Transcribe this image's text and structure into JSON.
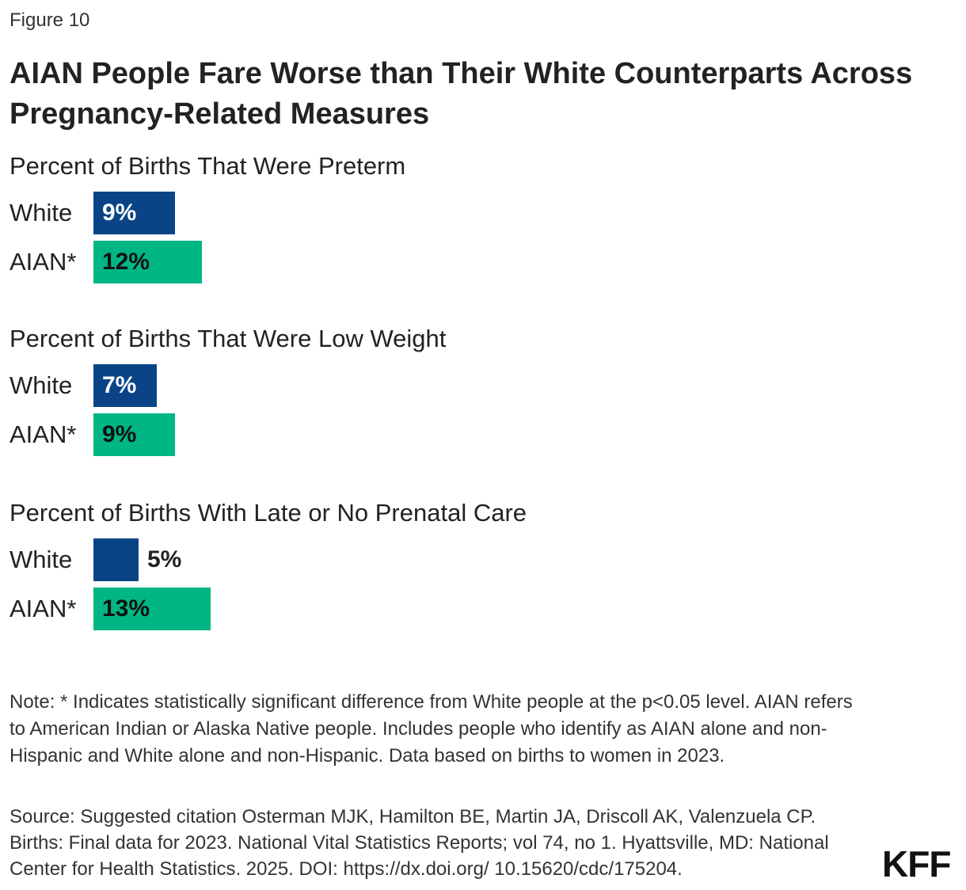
{
  "figure_label": "Figure 10",
  "title": "AIAN People Fare Worse than Their White Counterparts Across Pregnancy-Related Measures",
  "colors": {
    "white": "#0a4487",
    "aian": "#00b684",
    "label_on_dark": "#ffffff",
    "label_on_light": "#111111",
    "label_outside": "#222222"
  },
  "chart_data": [
    {
      "type": "bar",
      "orientation": "horizontal",
      "title": "Percent of Births That Were Preterm",
      "categories": [
        "White",
        "AIAN*"
      ],
      "values": [
        9,
        12
      ],
      "value_labels": [
        "9%",
        "12%"
      ]
    },
    {
      "type": "bar",
      "orientation": "horizontal",
      "title": "Percent of Births That Were Low Weight",
      "categories": [
        "White",
        "AIAN*"
      ],
      "values": [
        7,
        9
      ],
      "value_labels": [
        "7%",
        "9%"
      ]
    },
    {
      "type": "bar",
      "orientation": "horizontal",
      "title": "Percent of Births With Late or No Prenatal Care",
      "categories": [
        "White",
        "AIAN*"
      ],
      "values": [
        5,
        13
      ],
      "value_labels": [
        "5%",
        "13%"
      ]
    }
  ],
  "note": "Note:  * Indicates statistically significant difference from White people at the p<0.05 level. AIAN refers to American Indian or Alaska Native people. Includes people who identify as AIAN alone and non-Hispanic and White alone and non-Hispanic. Data based on births to women in 2023.",
  "source": "Source: Suggested citation Osterman MJK, Hamilton BE, Martin JA, Driscoll AK, Valenzuela CP. Births: Final data for 2023. National Vital Statistics Reports; vol 74, no 1. Hyattsville, MD: National Center for Health Statistics. 2025. DOI: https://dx.doi.org/ 10.15620/cdc/175204.",
  "logo": "KFF"
}
